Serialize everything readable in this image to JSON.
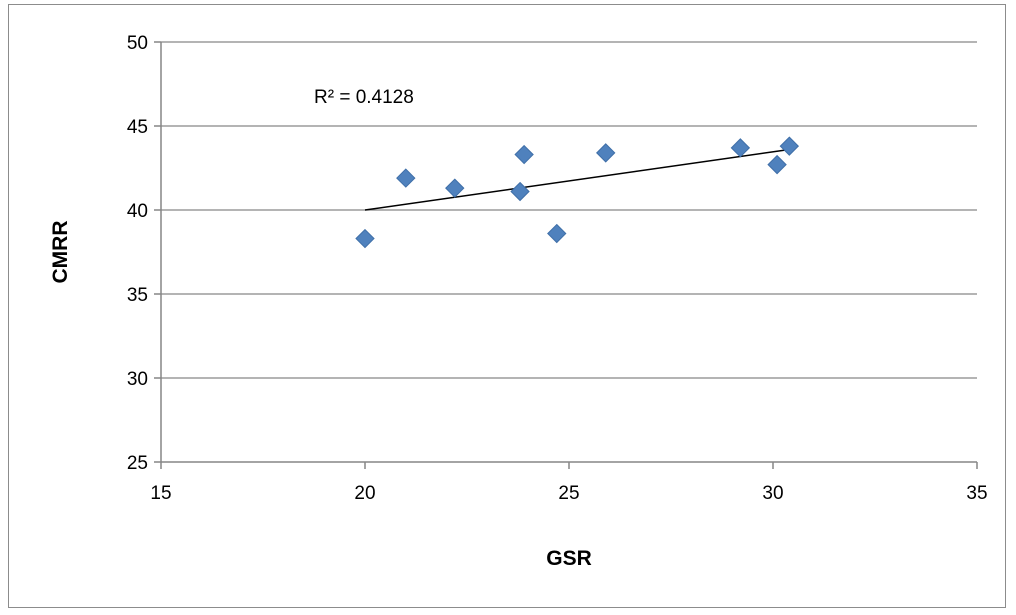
{
  "chart_data": {
    "type": "scatter",
    "title": "",
    "xlabel": "GSR",
    "ylabel": "CMRR",
    "xlim": [
      15,
      35
    ],
    "ylim": [
      25,
      50
    ],
    "xticks": [
      15,
      20,
      25,
      30,
      35
    ],
    "yticks": [
      25,
      30,
      35,
      40,
      45,
      50
    ],
    "grid": "horizontal major gridlines",
    "legend": "none",
    "series": [
      {
        "marker": "diamond",
        "color": "#4f81bd",
        "points": [
          {
            "x": 20.0,
            "y": 38.3
          },
          {
            "x": 21.0,
            "y": 41.9
          },
          {
            "x": 22.2,
            "y": 41.3
          },
          {
            "x": 23.8,
            "y": 41.1
          },
          {
            "x": 23.9,
            "y": 43.3
          },
          {
            "x": 24.7,
            "y": 38.6
          },
          {
            "x": 25.9,
            "y": 43.4
          },
          {
            "x": 29.2,
            "y": 43.7
          },
          {
            "x": 30.1,
            "y": 42.7
          },
          {
            "x": 30.4,
            "y": 43.8
          }
        ]
      }
    ],
    "trendline": {
      "type": "linear",
      "color": "#000000",
      "x": [
        20.0,
        30.4
      ],
      "y": [
        40.0,
        43.6
      ]
    },
    "annotations": [
      {
        "text": "R² = 0.4128"
      }
    ]
  }
}
